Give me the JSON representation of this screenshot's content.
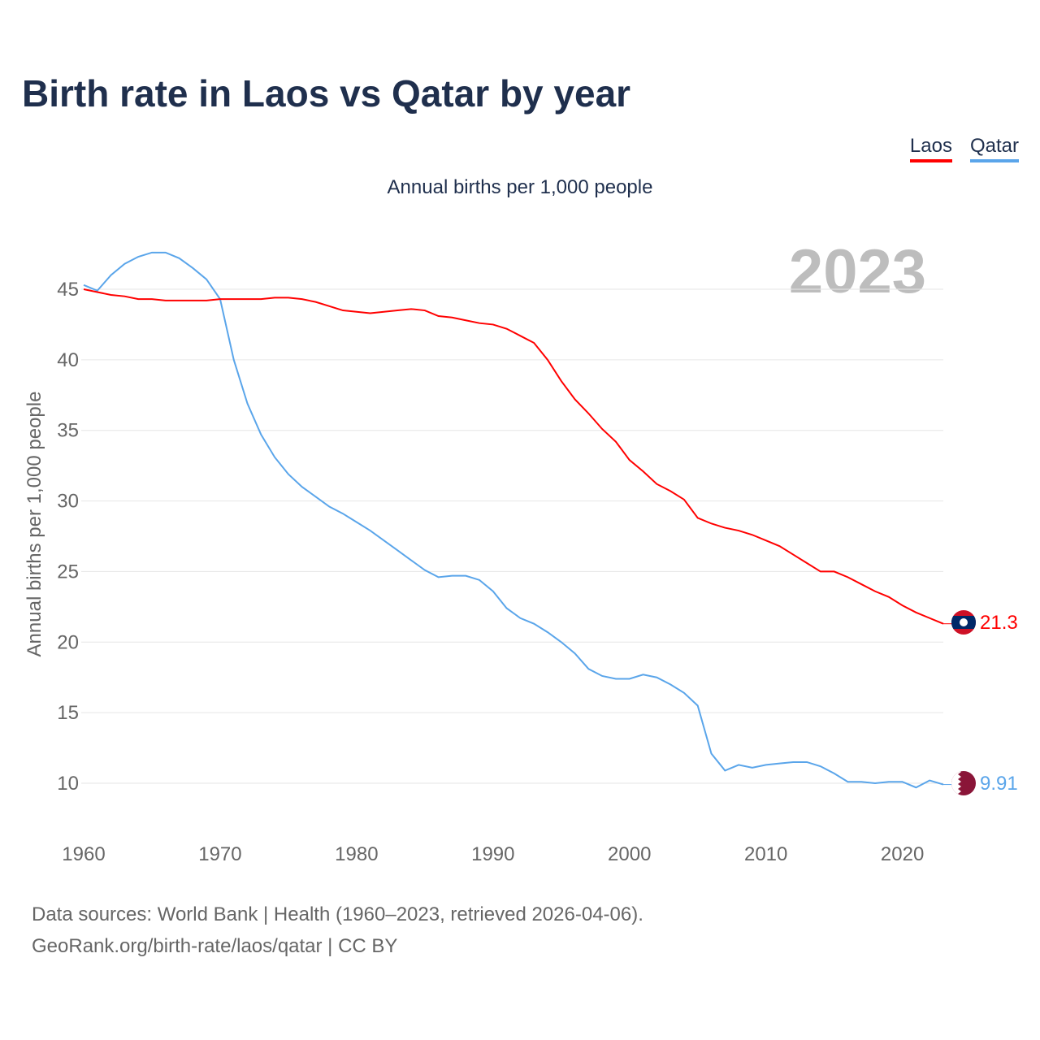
{
  "title": "Birth rate in Laos vs Qatar by year",
  "subtitle": "Annual births per 1,000 people",
  "year_label": "2023",
  "footer": {
    "line1": "Data sources: World Bank | Health (1960–2023, retrieved 2026-04-06).",
    "line2": "GeoRank.org/birth-rate/laos/qatar | CC BY"
  },
  "chart_data": {
    "type": "line",
    "title": "Birth rate in Laos vs Qatar by year",
    "ylabel": "Annual births per 1,000 people",
    "xlabel": "",
    "xlim": [
      1960,
      2023
    ],
    "ylim": [
      7,
      48
    ],
    "xticks": [
      "1960",
      "1970",
      "1980",
      "1990",
      "2000",
      "2010",
      "2020"
    ],
    "yticks": [
      "10",
      "15",
      "20",
      "25",
      "30",
      "35",
      "40",
      "45"
    ],
    "grid": true,
    "legend_position": "top-right",
    "x": [
      1960,
      1961,
      1962,
      1963,
      1964,
      1965,
      1966,
      1967,
      1968,
      1969,
      1970,
      1971,
      1972,
      1973,
      1974,
      1975,
      1976,
      1977,
      1978,
      1979,
      1980,
      1981,
      1982,
      1983,
      1984,
      1985,
      1986,
      1987,
      1988,
      1989,
      1990,
      1991,
      1992,
      1993,
      1994,
      1995,
      1996,
      1997,
      1998,
      1999,
      2000,
      2001,
      2002,
      2003,
      2004,
      2005,
      2006,
      2007,
      2008,
      2009,
      2010,
      2011,
      2012,
      2013,
      2014,
      2015,
      2016,
      2017,
      2018,
      2019,
      2020,
      2021,
      2022,
      2023
    ],
    "series": [
      {
        "name": "Laos",
        "color": "#ff0000",
        "end_label": "21.3",
        "values": [
          45.0,
          44.8,
          44.6,
          44.5,
          44.3,
          44.3,
          44.2,
          44.2,
          44.2,
          44.2,
          44.3,
          44.3,
          44.3,
          44.3,
          44.4,
          44.4,
          44.3,
          44.1,
          43.8,
          43.5,
          43.4,
          43.3,
          43.4,
          43.5,
          43.6,
          43.5,
          43.1,
          43.0,
          42.8,
          42.6,
          42.5,
          42.2,
          41.7,
          41.2,
          40.0,
          38.5,
          37.2,
          36.2,
          35.1,
          34.2,
          32.9,
          32.1,
          31.2,
          30.7,
          30.1,
          28.8,
          28.4,
          28.1,
          27.9,
          27.6,
          27.2,
          26.8,
          26.2,
          25.6,
          25.0,
          25.0,
          24.6,
          24.1,
          23.6,
          23.2,
          22.6,
          22.1,
          21.7,
          21.3
        ]
      },
      {
        "name": "Qatar",
        "color": "#5aa5ea",
        "end_label": "9.91",
        "values": [
          45.3,
          44.9,
          46.0,
          46.8,
          47.3,
          47.6,
          47.6,
          47.2,
          46.5,
          45.7,
          44.3,
          40.0,
          36.9,
          34.7,
          33.1,
          31.9,
          31.0,
          30.3,
          29.6,
          29.1,
          28.5,
          27.9,
          27.2,
          26.5,
          25.8,
          25.1,
          24.6,
          24.7,
          24.7,
          24.4,
          23.6,
          22.4,
          21.7,
          21.3,
          20.7,
          20.0,
          19.2,
          18.1,
          17.6,
          17.4,
          17.4,
          17.7,
          17.5,
          17.0,
          16.4,
          15.5,
          12.1,
          10.9,
          11.3,
          11.1,
          11.3,
          11.4,
          11.5,
          11.5,
          11.2,
          10.7,
          10.1,
          10.1,
          10.0,
          10.1,
          10.1,
          9.7,
          10.2,
          9.91
        ]
      }
    ]
  }
}
